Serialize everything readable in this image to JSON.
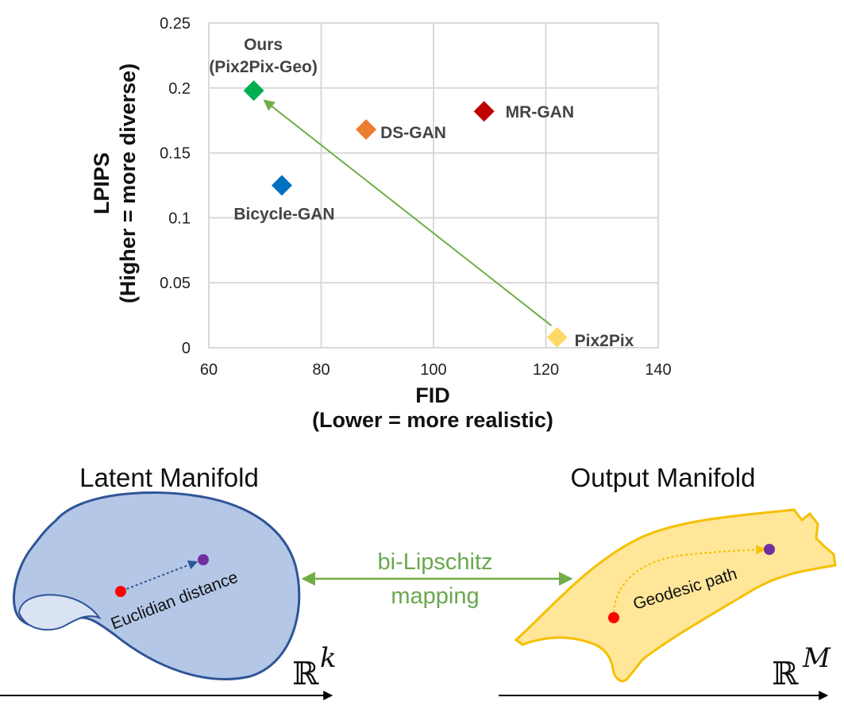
{
  "chart_data": {
    "type": "scatter",
    "xlabel": "FID",
    "xlabel_note": "(Lower = more realistic)",
    "ylabel": "LPIPS",
    "ylabel_note": "(Higher = more diverse)",
    "xlim": [
      60,
      140
    ],
    "ylim": [
      0,
      0.25
    ],
    "xticks": [
      "60",
      "80",
      "100",
      "120",
      "140"
    ],
    "yticks": [
      "0",
      "0.05",
      "0.1",
      "0.15",
      "0.2",
      "0.25"
    ],
    "grid": true,
    "points": [
      {
        "name": "Ours (Pix2Pix-Geo)",
        "label_lines": [
          "Ours",
          "(Pix2Pix-Geo)"
        ],
        "x": 68,
        "y": 0.198,
        "color": "#00b050"
      },
      {
        "name": "DS-GAN",
        "label_lines": [
          "DS-GAN"
        ],
        "x": 88,
        "y": 0.168,
        "color": "#ed7d31"
      },
      {
        "name": "MR-GAN",
        "label_lines": [
          "MR-GAN"
        ],
        "x": 109,
        "y": 0.182,
        "color": "#c00000"
      },
      {
        "name": "Bicycle-GAN",
        "label_lines": [
          "Bicycle-GAN"
        ],
        "x": 73,
        "y": 0.125,
        "color": "#0070c0"
      },
      {
        "name": "Pix2Pix",
        "label_lines": [
          "Pix2Pix"
        ],
        "x": 122,
        "y": 0.008,
        "color": "#ffd966"
      }
    ],
    "arrow": {
      "from": [
        121,
        0.017
      ],
      "to": [
        70,
        0.19
      ],
      "color": "#70ad47"
    }
  },
  "diagram": {
    "latent_title": "Latent Manifold",
    "output_title": "Output Manifold",
    "latent_note": "Euclidian distance",
    "output_note": "Geodesic path",
    "mapping_line1": "bi-Lipschitz",
    "mapping_line2": "mapping",
    "latent_space": "ℝ",
    "latent_space_sup": "k",
    "output_space": "ℝ",
    "output_space_sup": "M",
    "colors": {
      "latent_fill": "#b4c7e7",
      "latent_stroke": "#2f5597",
      "output_fill": "#ffe699",
      "output_stroke": "#f5c000",
      "mapping": "#70ad47",
      "start_dot": "#ff0000",
      "end_dot": "#7030a0"
    }
  }
}
